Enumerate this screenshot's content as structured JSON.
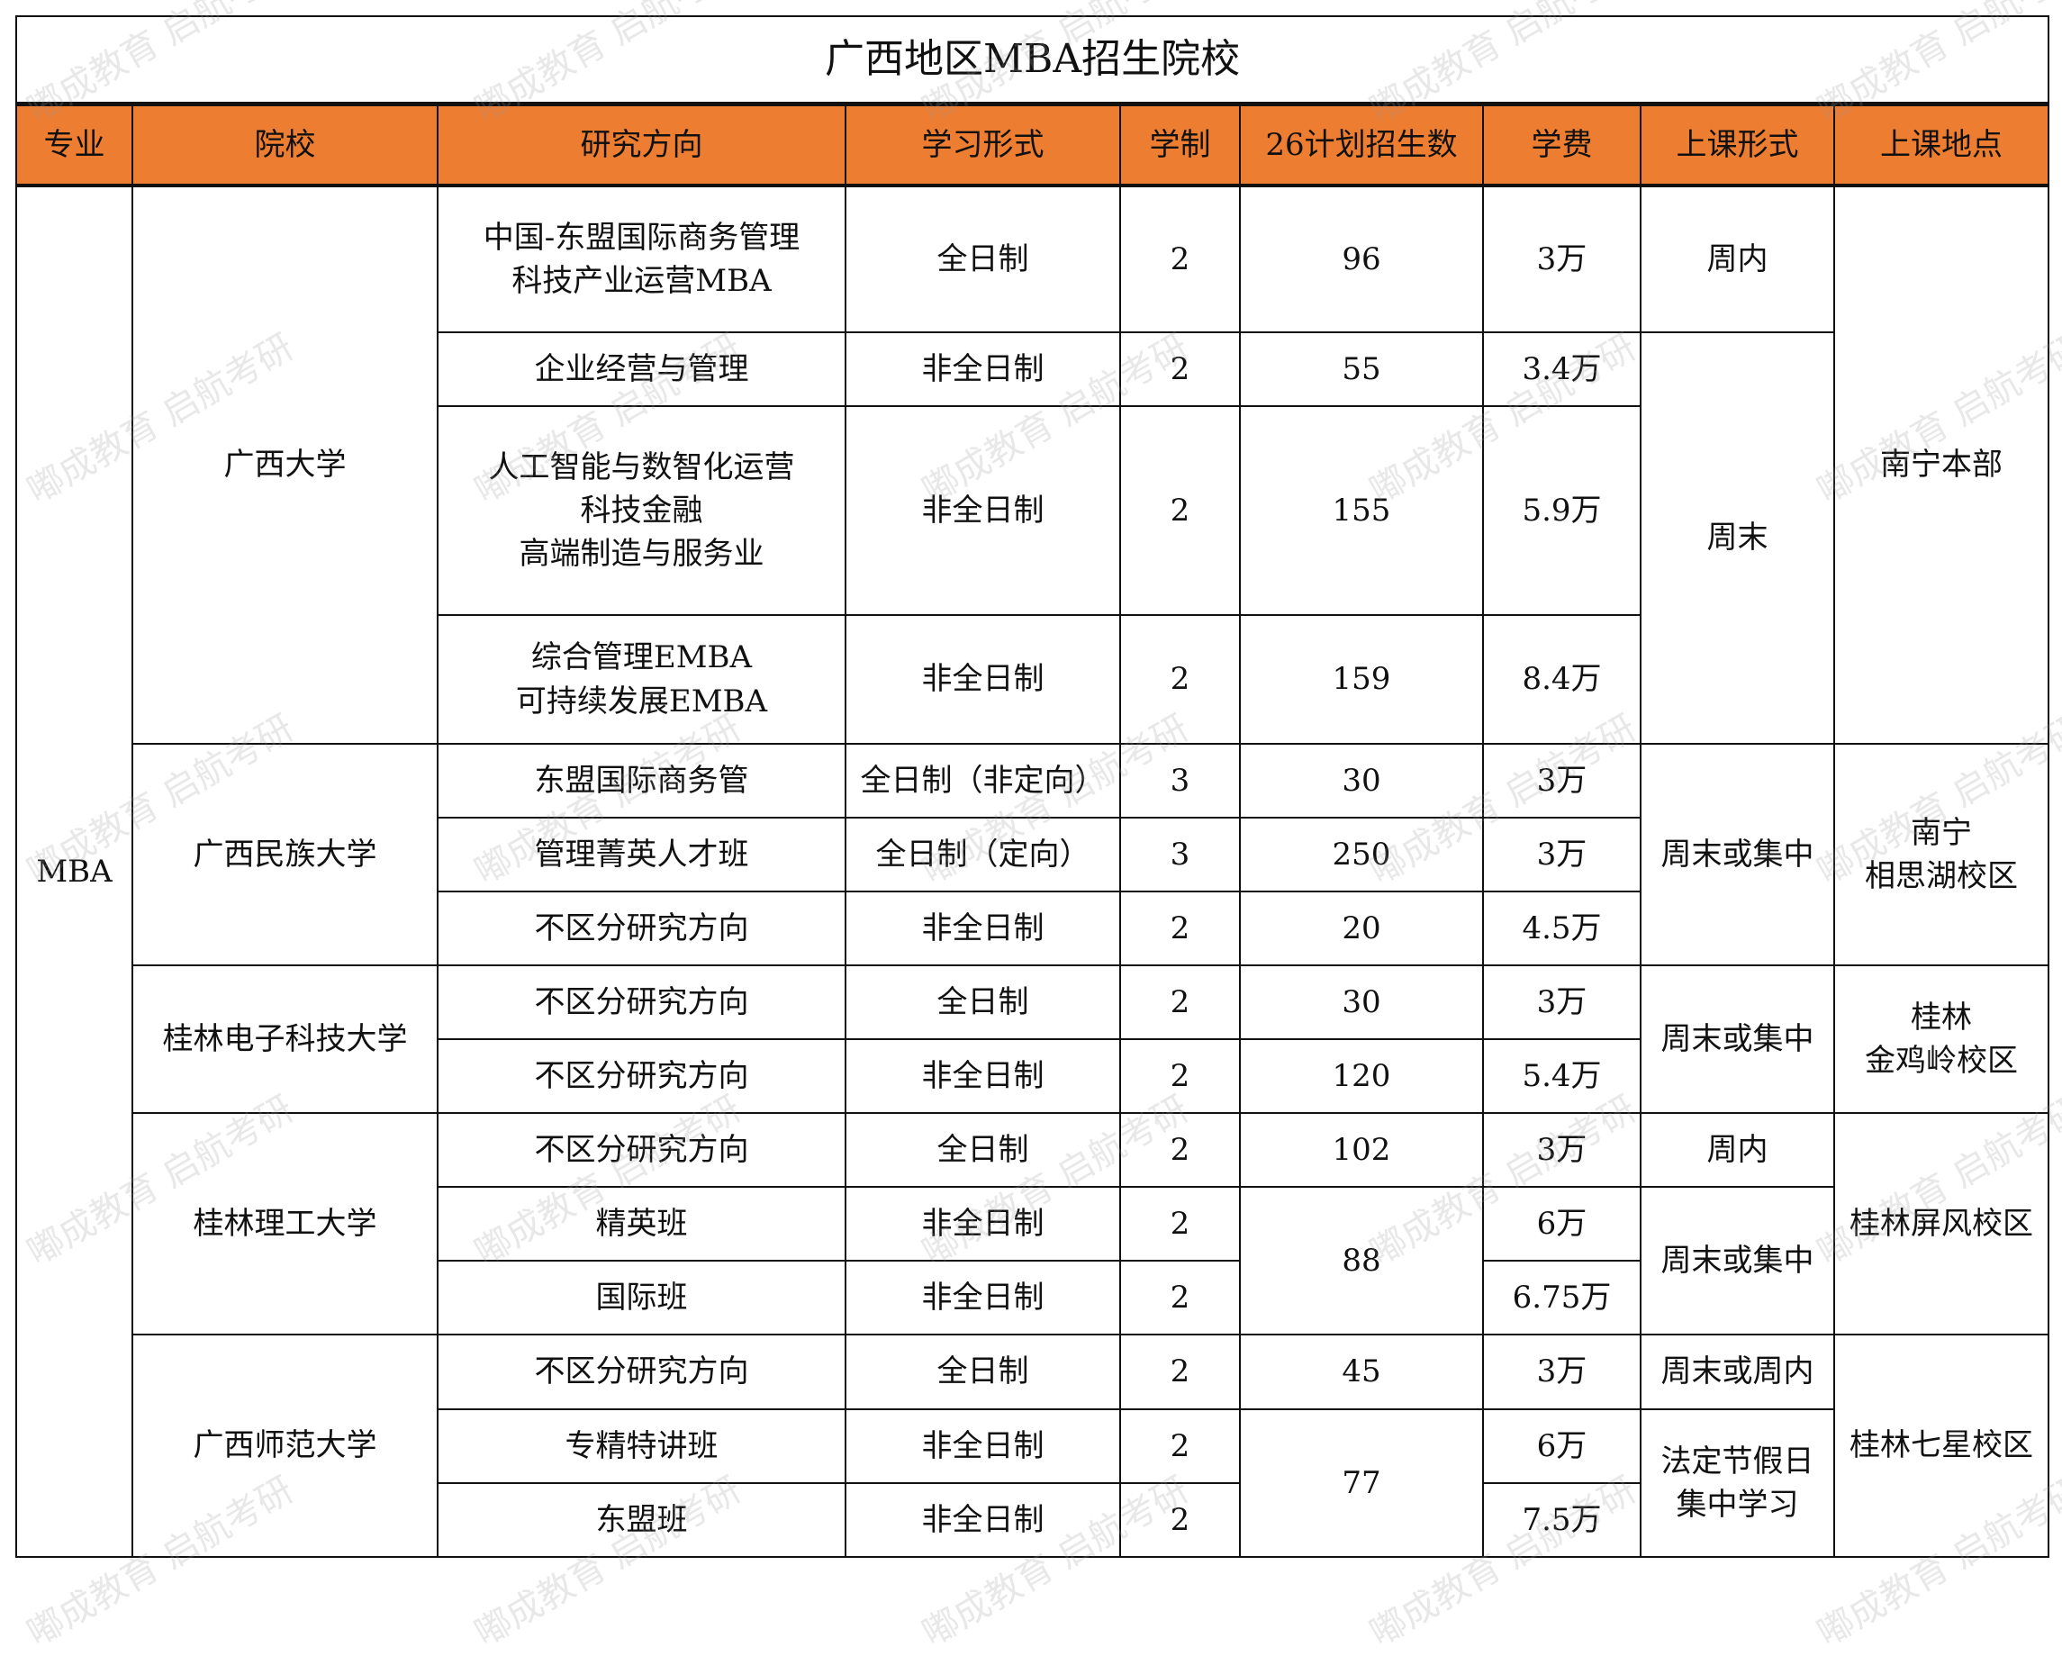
{
  "title": "广西地区MBA招生院校",
  "headers": [
    "专业",
    "院校",
    "研究方向",
    "学习形式",
    "学制",
    "26计划招生数",
    "学费",
    "上课形式",
    "上课地点"
  ],
  "header_color": "#ED7D31",
  "major": "MBA",
  "watermark": "嘟成教育 启航考研",
  "rows": [
    {
      "school": "广西大学",
      "direction": "中国-东盟国际商务管理\n科技产业运营MBA",
      "form": "全日制",
      "years": "2",
      "plan": "96",
      "fee": "3万",
      "class_format": "周内",
      "location": "南宁本部"
    },
    {
      "direction": "企业经营与管理",
      "form": "非全日制",
      "years": "2",
      "plan": "55",
      "fee": "3.4万",
      "class_format": "周末"
    },
    {
      "direction": "人工智能与数智化运营\n科技金融\n高端制造与服务业",
      "form": "非全日制",
      "years": "2",
      "plan": "155",
      "fee": "5.9万"
    },
    {
      "direction": "综合管理EMBA\n可持续发展EMBA",
      "form": "非全日制",
      "years": "2",
      "plan": "159",
      "fee": "8.4万"
    },
    {
      "school": "广西民族大学",
      "direction": "东盟国际商务管",
      "form": "全日制（非定向）",
      "years": "3",
      "plan": "30",
      "fee": "3万",
      "class_format": "周末或集中",
      "location": "南宁\n相思湖校区"
    },
    {
      "direction": "管理菁英人才班",
      "form": "全日制（定向）",
      "years": "3",
      "plan": "250",
      "fee": "3万"
    },
    {
      "direction": "不区分研究方向",
      "form": "非全日制",
      "years": "2",
      "plan": "20",
      "fee": "4.5万"
    },
    {
      "school": "桂林电子科技大学",
      "direction": "不区分研究方向",
      "form": "全日制",
      "years": "2",
      "plan": "30",
      "fee": "3万",
      "class_format": "周末或集中",
      "location": "桂林\n金鸡岭校区"
    },
    {
      "direction": "不区分研究方向",
      "form": "非全日制",
      "years": "2",
      "plan": "120",
      "fee": "5.4万"
    },
    {
      "school": "桂林理工大学",
      "direction": "不区分研究方向",
      "form": "全日制",
      "years": "2",
      "plan": "102",
      "fee": "3万",
      "class_format": "周内",
      "location": "桂林屏风校区"
    },
    {
      "direction": "精英班",
      "form": "非全日制",
      "years": "2",
      "plan": "88",
      "fee": "6万",
      "class_format": "周末或集中"
    },
    {
      "direction": "国际班",
      "form": "非全日制",
      "years": "2",
      "fee": "6.75万"
    },
    {
      "school": "广西师范大学",
      "direction": "不区分研究方向",
      "form": "全日制",
      "years": "2",
      "plan": "45",
      "fee": "3万",
      "class_format": "周末或周内",
      "location": "桂林七星校区"
    },
    {
      "direction": "专精特讲班",
      "form": "非全日制",
      "years": "2",
      "plan": "77",
      "fee": "6万",
      "class_format": "法定节假日\n集中学习"
    },
    {
      "direction": "东盟班",
      "form": "非全日制",
      "years": "2",
      "fee": "7.5万"
    }
  ]
}
